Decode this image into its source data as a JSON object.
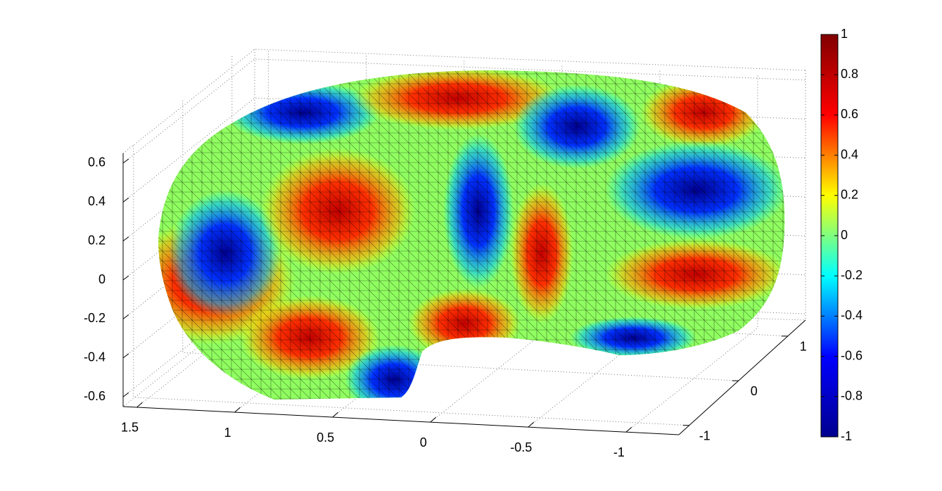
{
  "chart_data": {
    "type": "surface3d",
    "xlim": [
      1.57,
      -1.27
    ],
    "xticks": [
      1.5,
      1,
      0.5,
      0,
      -0.5,
      -1
    ],
    "ylim": [
      -1.21,
      1.36
    ],
    "yticks": [
      -1,
      0,
      1
    ],
    "zlim": [
      -0.65,
      0.65
    ],
    "zticks": [
      -0.6,
      -0.4,
      -0.2,
      0,
      0.2,
      0.4,
      0.6
    ],
    "grid": true,
    "colorbar": {
      "clim": [
        -1,
        1
      ],
      "ticks": [
        -1,
        -0.8,
        -0.6,
        -0.4,
        -0.2,
        0,
        0.2,
        0.4,
        0.6,
        0.8,
        1
      ],
      "colors": [
        "#00008f",
        "#0000ff",
        "#00ffff",
        "#ffff00",
        "#ff0000",
        "#800000"
      ]
    }
  }
}
